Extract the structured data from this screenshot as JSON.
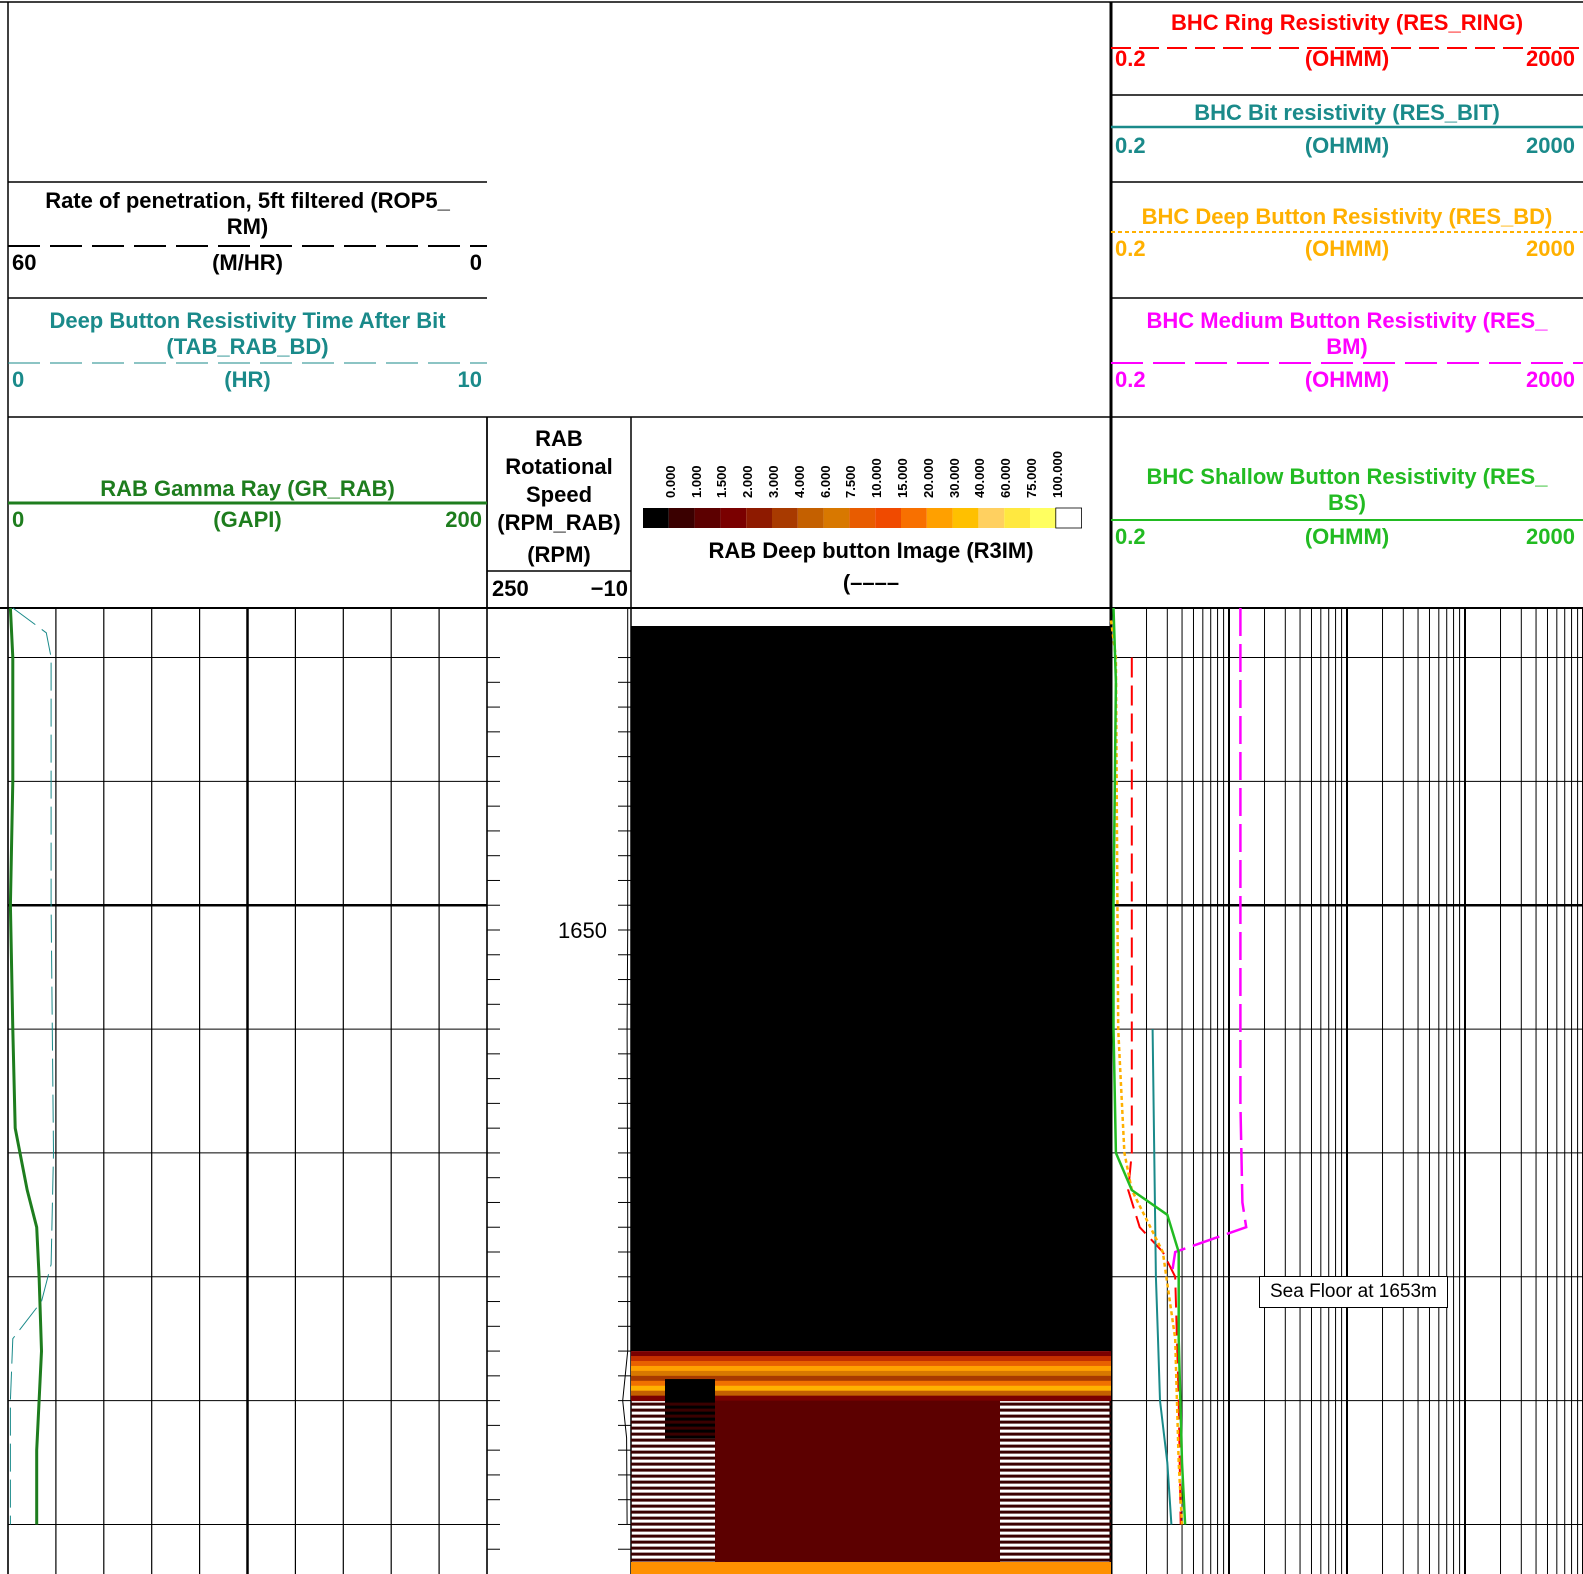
{
  "tracks": {
    "left": {
      "curves": [
        {
          "key": "rop",
          "title": "Rate of penetration, 5ft filtered (ROP5_RM)",
          "title_line1": "Rate of penetration, 5ft filtered (ROP5_",
          "title_line2": "RM)",
          "unit": "(M/HR)",
          "min": "60",
          "max": "0",
          "color": "#000000",
          "dash": "long"
        },
        {
          "key": "tab",
          "title_line1": "Deep Button Resistivity Time After Bit",
          "title_line2": "(TAB_RAB_BD)",
          "unit": "(HR)",
          "min": "0",
          "max": "10",
          "color": "#1a8a8a",
          "dash": "long-thin"
        },
        {
          "key": "gr",
          "title": "RAB Gamma Ray (GR_RAB)",
          "unit": "(GAPI)",
          "min": "0",
          "max": "200",
          "color": "#1e7d1e",
          "dash": "solid"
        }
      ]
    },
    "depth": {
      "title_line1": "RAB",
      "title_line2": "Rotational",
      "title_line3": "Speed",
      "title_line4": "(RPM_RAB)",
      "unit": "(RPM)",
      "min": "250",
      "max": "−10",
      "depth_label": "1650"
    },
    "image": {
      "title": "RAB Deep button Image (R3IM)",
      "unit": "(––––",
      "scale_labels": [
        "0.000",
        "1.000",
        "1.500",
        "2.000",
        "3.000",
        "4.000",
        "6.000",
        "7.500",
        "10.000",
        "15.000",
        "20.000",
        "30.000",
        "40.000",
        "60.000",
        "75.000",
        "100.000"
      ],
      "scale_colors": [
        "#000000",
        "#3a0000",
        "#5c0000",
        "#7a0000",
        "#8e1a00",
        "#a83a00",
        "#c46000",
        "#d87800",
        "#e85c00",
        "#f04a00",
        "#f87000",
        "#ffa000",
        "#ffc000",
        "#ffd060",
        "#ffe840",
        "#ffff60",
        "#ffffff"
      ]
    },
    "right": {
      "curves": [
        {
          "key": "ring",
          "title": "BHC Ring Resistivity (RES_RING)",
          "unit": "(OHMM)",
          "min": "0.2",
          "max": "2000",
          "color": "#ff0000"
        },
        {
          "key": "bit",
          "title": "BHC Bit resistivity (RES_BIT)",
          "unit": "(OHMM)",
          "min": "0.2",
          "max": "2000",
          "color": "#1a8a8a"
        },
        {
          "key": "bd",
          "title": "BHC Deep Button Resistivity (RES_BD)",
          "unit": "(OHMM)",
          "min": "0.2",
          "max": "2000",
          "color": "#ffb000"
        },
        {
          "key": "bm",
          "title_line1": "BHC Medium Button Resistivity (RES_",
          "title_line2": "BM)",
          "unit": "(OHMM)",
          "min": "0.2",
          "max": "2000",
          "color": "#ff00ff"
        },
        {
          "key": "bs",
          "title_line1": "BHC Shallow Button Resistivity (RES_",
          "title_line2": "BS)",
          "unit": "(OHMM)",
          "min": "0.2",
          "max": "2000",
          "color": "#22bb22"
        }
      ],
      "annotation": "Sea Floor at 1653m"
    }
  },
  "chart_data": {
    "type": "line",
    "depth_axis": {
      "unit": "m",
      "labeled_depth": 1650
    },
    "series": [
      {
        "name": "RAB Gamma Ray (GR_RAB)",
        "unit": "GAPI",
        "depth": [
          1647.6,
          1648.0,
          1649.0,
          1650.0,
          1651.0,
          1651.8,
          1652.3,
          1652.6,
          1653.0,
          1653.6,
          1654.4,
          1655.0
        ],
        "values": [
          1,
          2,
          2,
          1,
          2,
          3,
          8,
          12,
          13,
          14,
          12,
          12
        ]
      },
      {
        "name": "Deep Button Resistivity Time After Bit (TAB_RAB_BD)",
        "unit": "HR",
        "depth": [
          1647.6,
          1647.8,
          1648.0,
          1650.0,
          1652.0,
          1652.9,
          1653.2,
          1653.5,
          1654.0,
          1655.0
        ],
        "values": [
          0.1,
          0.8,
          0.9,
          0.9,
          0.95,
          0.9,
          0.7,
          0.1,
          0.05,
          0.05
        ]
      },
      {
        "name": "BHC Ring Resistivity (RES_RING)",
        "unit": "OHMM",
        "depth": [
          1648.0,
          1648.1,
          1652.0,
          1652.3,
          1652.6,
          1652.8,
          1653.0,
          1654.0,
          1655.0
        ],
        "values": [
          0.3,
          0.3,
          0.3,
          0.28,
          0.35,
          0.55,
          0.7,
          0.75,
          0.78
        ]
      },
      {
        "name": "BHC Bit resistivity (RES_BIT)",
        "unit": "OHMM",
        "depth": [
          1651.0,
          1653.0,
          1653.5,
          1654.0,
          1654.5,
          1655.0
        ],
        "values": [
          0.45,
          0.48,
          0.5,
          0.52,
          0.6,
          0.65
        ]
      },
      {
        "name": "BHC Deep Button Resistivity (RES_BD)",
        "unit": "OHMM",
        "depth": [
          1647.7,
          1648.0,
          1651.0,
          1652.0,
          1652.3,
          1652.8,
          1653.5,
          1654.5,
          1655.0
        ],
        "values": [
          0.2,
          0.22,
          0.23,
          0.26,
          0.3,
          0.55,
          0.7,
          0.75,
          0.8
        ]
      },
      {
        "name": "BHC Medium Button Resistivity (RES_BM)",
        "unit": "OHMM",
        "depth": [
          1647.6,
          1651.6,
          1652.4,
          1652.6,
          1652.8,
          1653.0
        ],
        "values": [
          2.5,
          2.5,
          2.6,
          2.8,
          0.7,
          0.65
        ]
      },
      {
        "name": "BHC Shallow Button Resistivity (RES_BS)",
        "unit": "OHMM",
        "depth": [
          1647.6,
          1648.2,
          1650.0,
          1651.0,
          1652.0,
          1652.3,
          1652.5,
          1652.8,
          1653.5,
          1654.5,
          1655.0
        ],
        "values": [
          0.21,
          0.22,
          0.21,
          0.21,
          0.22,
          0.3,
          0.6,
          0.75,
          0.75,
          0.8,
          0.85
        ]
      },
      {
        "name": "RAB Rotational Speed (RPM_RAB)",
        "unit": "RPM",
        "depth": [
          1647.6,
          1649.0,
          1650.2,
          1651.0,
          1652.5,
          1653.6,
          1654.0,
          1654.3,
          1655.0
        ],
        "values": [
          -4,
          -4,
          -4,
          -3,
          -4,
          -4,
          5,
          -2,
          -3
        ]
      }
    ]
  }
}
